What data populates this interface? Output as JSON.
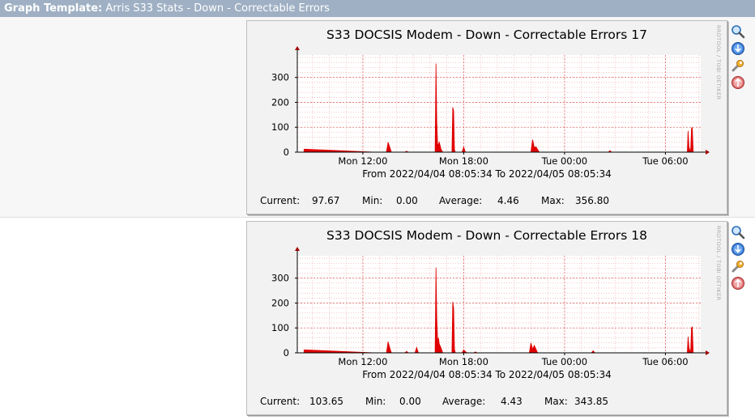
{
  "header": {
    "prefix": "Graph Template:",
    "name": "Arris S33 Stats - Down - Correctable Errors"
  },
  "icons": [
    "zoom-icon",
    "download-icon",
    "edit-wrench-icon",
    "move-up-icon"
  ],
  "vertical_label": "RRDTOOL / TOBI OETIKER",
  "colors": {
    "series": "#e00000",
    "header_bg": "#9fb0c4",
    "grid": "#f0a0a0"
  },
  "chart_data": [
    {
      "type": "area",
      "title": "S33 DOCSIS Modem - Down - Correctable Errors 17",
      "period": "From 2022/04/04 08:05:34 To 2022/04/05 08:05:34",
      "xticks": [
        "Mon 12:00",
        "Mon 18:00",
        "Tue 00:00",
        "Tue 06:00"
      ],
      "xtick_hours": [
        3.9,
        9.9,
        15.9,
        21.9
      ],
      "yticks": [
        "0",
        "100",
        "200",
        "300"
      ],
      "ylim": [
        0,
        390
      ],
      "xrange_hours": [
        0,
        24
      ],
      "series": [
        {
          "values": [
            [
              0.4,
              12
            ],
            [
              4.6,
              0
            ],
            [
              5.3,
              0
            ],
            [
              5.4,
              40
            ],
            [
              5.5,
              20
            ],
            [
              5.6,
              0
            ],
            [
              6.4,
              0
            ],
            [
              6.5,
              4
            ],
            [
              6.6,
              0
            ],
            [
              8.2,
              0
            ],
            [
              8.25,
              356
            ],
            [
              8.3,
              120
            ],
            [
              8.35,
              25
            ],
            [
              8.45,
              40
            ],
            [
              8.55,
              12
            ],
            [
              8.65,
              0
            ],
            [
              9.2,
              0
            ],
            [
              9.25,
              180
            ],
            [
              9.3,
              165
            ],
            [
              9.35,
              10
            ],
            [
              9.4,
              0
            ],
            [
              9.8,
              0
            ],
            [
              9.9,
              20
            ],
            [
              10,
              0
            ],
            [
              13.9,
              0
            ],
            [
              14.0,
              50
            ],
            [
              14.1,
              18
            ],
            [
              14.2,
              22
            ],
            [
              14.3,
              10
            ],
            [
              14.4,
              0
            ],
            [
              18.5,
              0
            ],
            [
              18.6,
              6
            ],
            [
              18.7,
              0
            ],
            [
              23.2,
              0
            ],
            [
              23.25,
              85
            ],
            [
              23.3,
              20
            ],
            [
              23.4,
              0
            ],
            [
              23.45,
              95
            ],
            [
              23.5,
              98
            ],
            [
              23.55,
              0
            ]
          ]
        }
      ],
      "legend": {
        "current_label": "Current:",
        "current": "97.67",
        "min_label": "Min:",
        "min": "0.00",
        "avg_label": "Average:",
        "avg": "4.46",
        "max_label": "Max:",
        "max": "356.80"
      }
    },
    {
      "type": "area",
      "title": "S33 DOCSIS Modem - Down - Correctable Errors 18",
      "period": "From 2022/04/04 08:05:34 To 2022/04/05 08:05:34",
      "xticks": [
        "Mon 12:00",
        "Mon 18:00",
        "Tue 00:00",
        "Tue 06:00"
      ],
      "xtick_hours": [
        3.9,
        9.9,
        15.9,
        21.9
      ],
      "yticks": [
        "0",
        "100",
        "200",
        "300"
      ],
      "ylim": [
        0,
        390
      ],
      "xrange_hours": [
        0,
        24
      ],
      "series": [
        {
          "values": [
            [
              0.4,
              12
            ],
            [
              4.6,
              0
            ],
            [
              5.3,
              0
            ],
            [
              5.4,
              45
            ],
            [
              5.5,
              20
            ],
            [
              5.6,
              0
            ],
            [
              6.4,
              0
            ],
            [
              6.5,
              6
            ],
            [
              6.6,
              0
            ],
            [
              7.0,
              0
            ],
            [
              7.1,
              22
            ],
            [
              7.2,
              0
            ],
            [
              8.2,
              0
            ],
            [
              8.25,
              343
            ],
            [
              8.3,
              140
            ],
            [
              8.35,
              40
            ],
            [
              8.4,
              60
            ],
            [
              8.45,
              35
            ],
            [
              8.55,
              20
            ],
            [
              8.65,
              0
            ],
            [
              9.2,
              0
            ],
            [
              9.25,
              205
            ],
            [
              9.3,
              180
            ],
            [
              9.35,
              15
            ],
            [
              9.4,
              0
            ],
            [
              9.8,
              0
            ],
            [
              9.9,
              12
            ],
            [
              10,
              5
            ],
            [
              10.1,
              0
            ],
            [
              10.5,
              0
            ],
            [
              10.6,
              4
            ],
            [
              10.7,
              0
            ],
            [
              13.8,
              0
            ],
            [
              13.9,
              40
            ],
            [
              14.0,
              15
            ],
            [
              14.1,
              30
            ],
            [
              14.2,
              15
            ],
            [
              14.3,
              0
            ],
            [
              17.5,
              0
            ],
            [
              17.6,
              8
            ],
            [
              17.7,
              0
            ],
            [
              23.2,
              0
            ],
            [
              23.25,
              65
            ],
            [
              23.3,
              20
            ],
            [
              23.4,
              0
            ],
            [
              23.45,
              100
            ],
            [
              23.5,
              104
            ],
            [
              23.55,
              0
            ]
          ]
        }
      ],
      "legend": {
        "current_label": "Current:",
        "current": "103.65",
        "min_label": "Min:",
        "min": "0.00",
        "avg_label": "Average:",
        "avg": "4.43",
        "max_label": "Max:",
        "max": "343.85"
      }
    }
  ]
}
